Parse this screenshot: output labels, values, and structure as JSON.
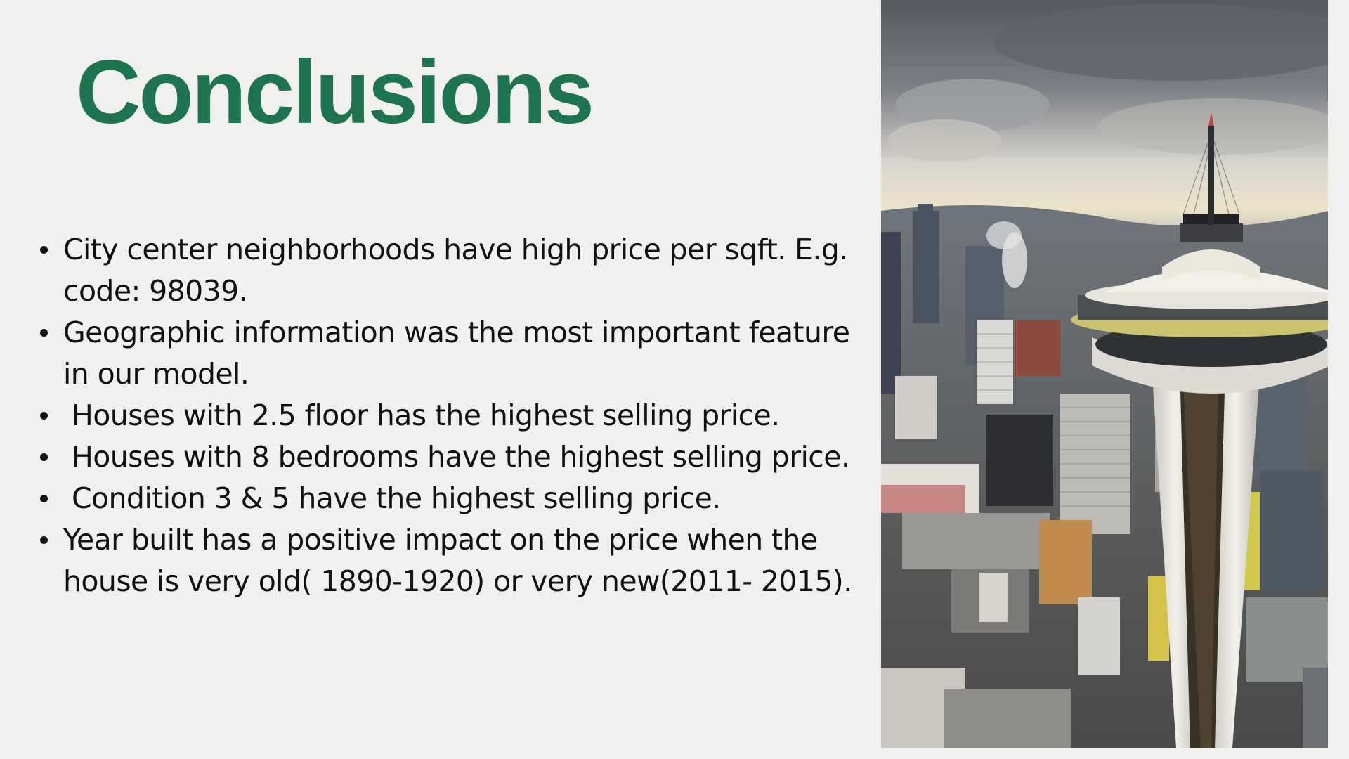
{
  "slide": {
    "title": "Conclusions",
    "title_color": "#1f7450",
    "background_color": "#f0f0ee",
    "bullets": [
      {
        "text": "City center neighborhoods have high price per sqft. E.g. code: 98039."
      },
      {
        "text": "Geographic information was the most important feature in our model."
      },
      {
        "text": "Houses with 2.5 floor has the highest selling price."
      },
      {
        "text": "Houses with 8 bedrooms have the highest selling price."
      },
      {
        "text": "Condition 3 & 5 have the highest selling price."
      },
      {
        "text": "Year built has a positive impact on the price when the house is very old( 1890-1920) or very new(2011- 2015)."
      }
    ],
    "photo": {
      "subject": "space-needle-city-skyline-photo"
    }
  }
}
